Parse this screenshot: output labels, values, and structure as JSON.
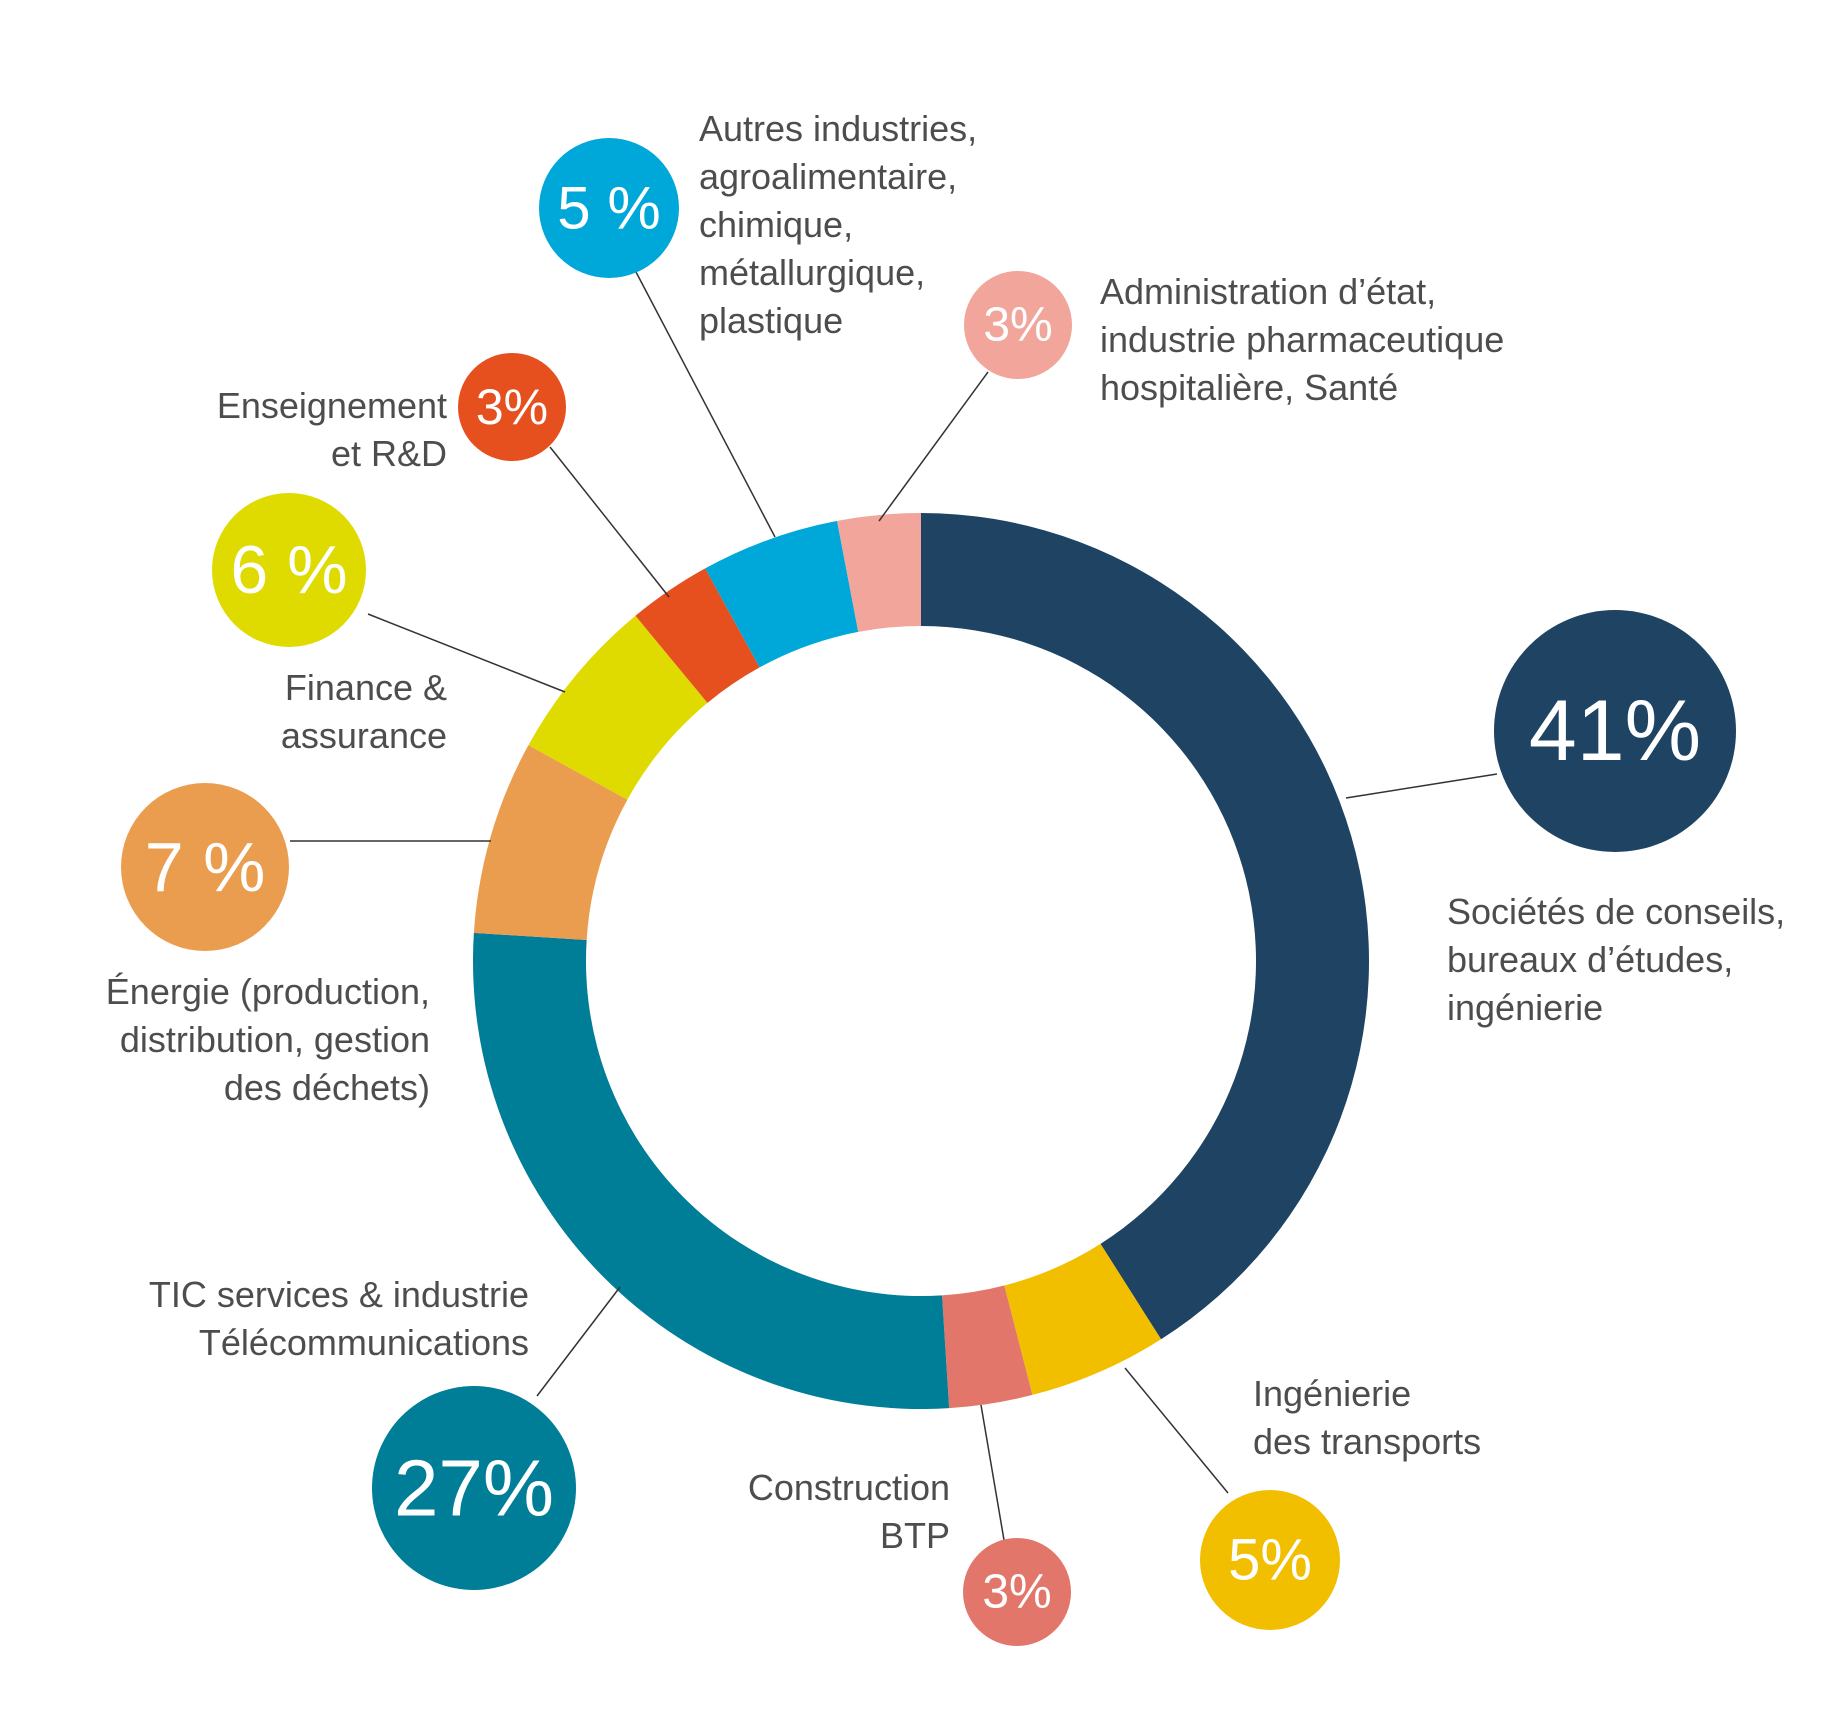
{
  "chart_data": {
    "type": "pie",
    "donut": true,
    "legend": "none",
    "categories": [
      "Sociétés de conseils, bureaux d’études, ingénierie",
      "Ingénierie des transports",
      "Construction BTP",
      "TIC services & industrie Télécommunications",
      "Énergie (production, distribution, gestion des déchets)",
      "Finance & assurance",
      "Enseignement et R&D",
      "Autres industries, agroalimentaire, chimique, métallurgique, plastique",
      "Administration d’état, industrie pharmaceutique hospitalière, Santé"
    ],
    "values": [
      41,
      5,
      3,
      27,
      7,
      6,
      3,
      5,
      3
    ],
    "slices": [
      {
        "value": 41,
        "percent_text": "41%",
        "color": "#1e4363",
        "label_lines": [
          "Sociétés de conseils,",
          "bureaux d’études,",
          "ingénierie"
        ]
      },
      {
        "value": 5,
        "percent_text": "5%",
        "color": "#f2be00",
        "label_lines": [
          "Ingénierie",
          "des transports"
        ]
      },
      {
        "value": 3,
        "percent_text": "3%",
        "color": "#e3766a",
        "label_lines": [
          "Construction",
          "BTP"
        ]
      },
      {
        "value": 27,
        "percent_text": "27%",
        "color": "#007e97",
        "label_lines": [
          "TIC services & industrie",
          "Télécommunications"
        ]
      },
      {
        "value": 7,
        "percent_text": "7 %",
        "color": "#eb9d4f",
        "label_lines": [
          "Énergie (production,",
          "distribution, gestion",
          "des déchets)"
        ]
      },
      {
        "value": 6,
        "percent_text": "6 %",
        "color": "#dfdb00",
        "label_lines": [
          "Finance &",
          "assurance"
        ]
      },
      {
        "value": 3,
        "percent_text": "3%",
        "color": "#e5501e",
        "label_lines": [
          "Enseignement",
          "et R&D"
        ]
      },
      {
        "value": 5,
        "percent_text": "5 %",
        "color": "#00a7d9",
        "label_lines": [
          "Autres industries,",
          "agroalimentaire,",
          "chimique,",
          "métallurgique,",
          "plastique"
        ]
      },
      {
        "value": 3,
        "percent_text": "3%",
        "color": "#f1a59b",
        "label_lines": [
          "Administration d’état,",
          "industrie pharmaceutique",
          "hospitalière, Santé"
        ]
      }
    ]
  }
}
